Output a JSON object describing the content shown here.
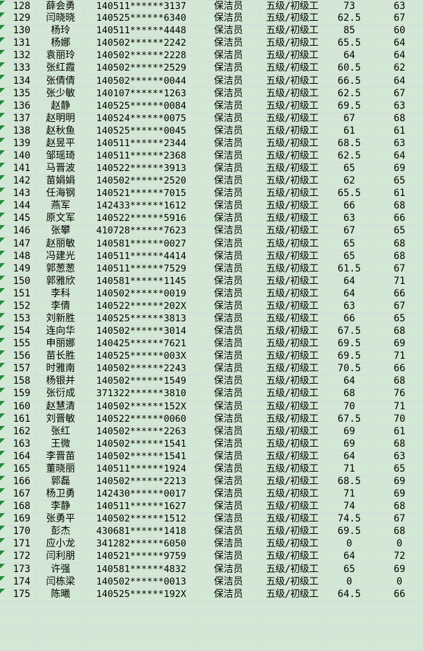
{
  "app": {
    "kind": "spreadsheet-grid",
    "visible_row_range": {
      "first": 128,
      "last": 175
    }
  },
  "colors": {
    "cell_fill": "#d3e8d4",
    "gridline": "#d6d8de",
    "marker_green": "#1f8c3b",
    "text": "#000000"
  },
  "icons": {
    "error_indicator": "green-triangle-top-left-corner"
  },
  "table": {
    "columns": [
      "row_no",
      "name",
      "id_number",
      "job_title",
      "grade",
      "score1",
      "score2"
    ],
    "empty_row_count": 4,
    "rows": [
      [
        128,
        "薛会勇",
        "140511******3137",
        "保洁员",
        "五级/初级工",
        "73",
        "63"
      ],
      [
        129,
        "闫晓晓",
        "140525******6340",
        "保洁员",
        "五级/初级工",
        "62.5",
        "67"
      ],
      [
        130,
        "杨玲",
        "140511******4448",
        "保洁员",
        "五级/初级工",
        "85",
        "60"
      ],
      [
        131,
        "杨娜",
        "140502******2242",
        "保洁员",
        "五级/初级工",
        "65.5",
        "64"
      ],
      [
        132,
        "袁丽玲",
        "140502******2228",
        "保洁员",
        "五级/初级工",
        "64",
        "64"
      ],
      [
        133,
        "张红霞",
        "140502******2529",
        "保洁员",
        "五级/初级工",
        "60.5",
        "62"
      ],
      [
        134,
        "张倩倩",
        "140502******0044",
        "保洁员",
        "五级/初级工",
        "66.5",
        "64"
      ],
      [
        135,
        "张少敏",
        "140107******1263",
        "保洁员",
        "五级/初级工",
        "62.5",
        "67"
      ],
      [
        136,
        "赵静",
        "140525******0084",
        "保洁员",
        "五级/初级工",
        "69.5",
        "63"
      ],
      [
        137,
        "赵明明",
        "140524******0075",
        "保洁员",
        "五级/初级工",
        "67",
        "68"
      ],
      [
        138,
        "赵秋鱼",
        "140525******0045",
        "保洁员",
        "五级/初级工",
        "61",
        "61"
      ],
      [
        139,
        "赵昱平",
        "140511******2344",
        "保洁员",
        "五级/初级工",
        "68.5",
        "63"
      ],
      [
        140,
        "邹瑶琦",
        "140511******2368",
        "保洁员",
        "五级/初级工",
        "62.5",
        "64"
      ],
      [
        141,
        "马晋波",
        "140522******3913",
        "保洁员",
        "五级/初级工",
        "65",
        "69"
      ],
      [
        142,
        "苗娟娟",
        "140502******2520",
        "保洁员",
        "五级/初级工",
        "62",
        "65"
      ],
      [
        143,
        "任海钢",
        "140521******7015",
        "保洁员",
        "五级/初级工",
        "65.5",
        "61"
      ],
      [
        144,
        "燕军",
        "142433******1612",
        "保洁员",
        "五级/初级工",
        "66",
        "68"
      ],
      [
        145,
        "原文军",
        "140522******5916",
        "保洁员",
        "五级/初级工",
        "63",
        "66"
      ],
      [
        146,
        "张攀",
        "410728******7623",
        "保洁员",
        "五级/初级工",
        "67",
        "65"
      ],
      [
        147,
        "赵丽敏",
        "140581******0027",
        "保洁员",
        "五级/初级工",
        "65",
        "68"
      ],
      [
        148,
        "冯建光",
        "140511******4414",
        "保洁员",
        "五级/初级工",
        "65",
        "68"
      ],
      [
        149,
        "郭葱葱",
        "140511******7529",
        "保洁员",
        "五级/初级工",
        "61.5",
        "67"
      ],
      [
        150,
        "郭雅欣",
        "140581******1145",
        "保洁员",
        "五级/初级工",
        "64",
        "71"
      ],
      [
        151,
        "李科",
        "140502******0019",
        "保洁员",
        "五级/初级工",
        "64",
        "66"
      ],
      [
        152,
        "李倩",
        "140522******202X",
        "保洁员",
        "五级/初级工",
        "63",
        "67"
      ],
      [
        153,
        "刘新胜",
        "140525******3813",
        "保洁员",
        "五级/初级工",
        "66",
        "65"
      ],
      [
        154,
        "连向华",
        "140502******3014",
        "保洁员",
        "五级/初级工",
        "67.5",
        "68"
      ],
      [
        155,
        "申丽娜",
        "140425******7621",
        "保洁员",
        "五级/初级工",
        "69.5",
        "69"
      ],
      [
        156,
        "苗长胜",
        "140525******003X",
        "保洁员",
        "五级/初级工",
        "69.5",
        "71"
      ],
      [
        157,
        "时雅南",
        "140502******2243",
        "保洁员",
        "五级/初级工",
        "70.5",
        "66"
      ],
      [
        158,
        "杨银并",
        "140502******1549",
        "保洁员",
        "五级/初级工",
        "64",
        "68"
      ],
      [
        159,
        "张衍成",
        "371322******3810",
        "保洁员",
        "五级/初级工",
        "68",
        "76"
      ],
      [
        160,
        "赵慧清",
        "140502******152X",
        "保洁员",
        "五级/初级工",
        "70",
        "71"
      ],
      [
        161,
        "刘晋敏",
        "140522******0060",
        "保洁员",
        "五级/初级工",
        "67.5",
        "70"
      ],
      [
        162,
        "张红",
        "140502******2263",
        "保洁员",
        "五级/初级工",
        "69",
        "61"
      ],
      [
        163,
        "王微",
        "140502******1541",
        "保洁员",
        "五级/初级工",
        "69",
        "68"
      ],
      [
        164,
        "李晋苗",
        "140502******1541",
        "保洁员",
        "五级/初级工",
        "64",
        "63"
      ],
      [
        165,
        "董晓丽",
        "140511******1924",
        "保洁员",
        "五级/初级工",
        "71",
        "65"
      ],
      [
        166,
        "郭磊",
        "140502******2213",
        "保洁员",
        "五级/初级工",
        "68.5",
        "69"
      ],
      [
        167,
        "杨卫勇",
        "142430******0017",
        "保洁员",
        "五级/初级工",
        "71",
        "69"
      ],
      [
        168,
        "李静",
        "140511******1627",
        "保洁员",
        "五级/初级工",
        "74",
        "68"
      ],
      [
        169,
        "张勇平",
        "140502******1512",
        "保洁员",
        "五级/初级工",
        "74.5",
        "67"
      ],
      [
        170,
        "彭杰",
        "430681******1418",
        "保洁员",
        "五级/初级工",
        "69.5",
        "68"
      ],
      [
        171,
        "应小龙",
        "341282******6050",
        "保洁员",
        "五级/初级工",
        "0",
        "0"
      ],
      [
        172,
        "闫利朋",
        "140521******9759",
        "保洁员",
        "五级/初级工",
        "64",
        "72"
      ],
      [
        173,
        "许强",
        "140581******4832",
        "保洁员",
        "五级/初级工",
        "65",
        "69"
      ],
      [
        174,
        "闫栋梁",
        "140502******0013",
        "保洁员",
        "五级/初级工",
        "0",
        "0"
      ],
      [
        175,
        "陈曦",
        "140525******192X",
        "保洁员",
        "五级/初级工",
        "64.5",
        "66"
      ]
    ]
  }
}
